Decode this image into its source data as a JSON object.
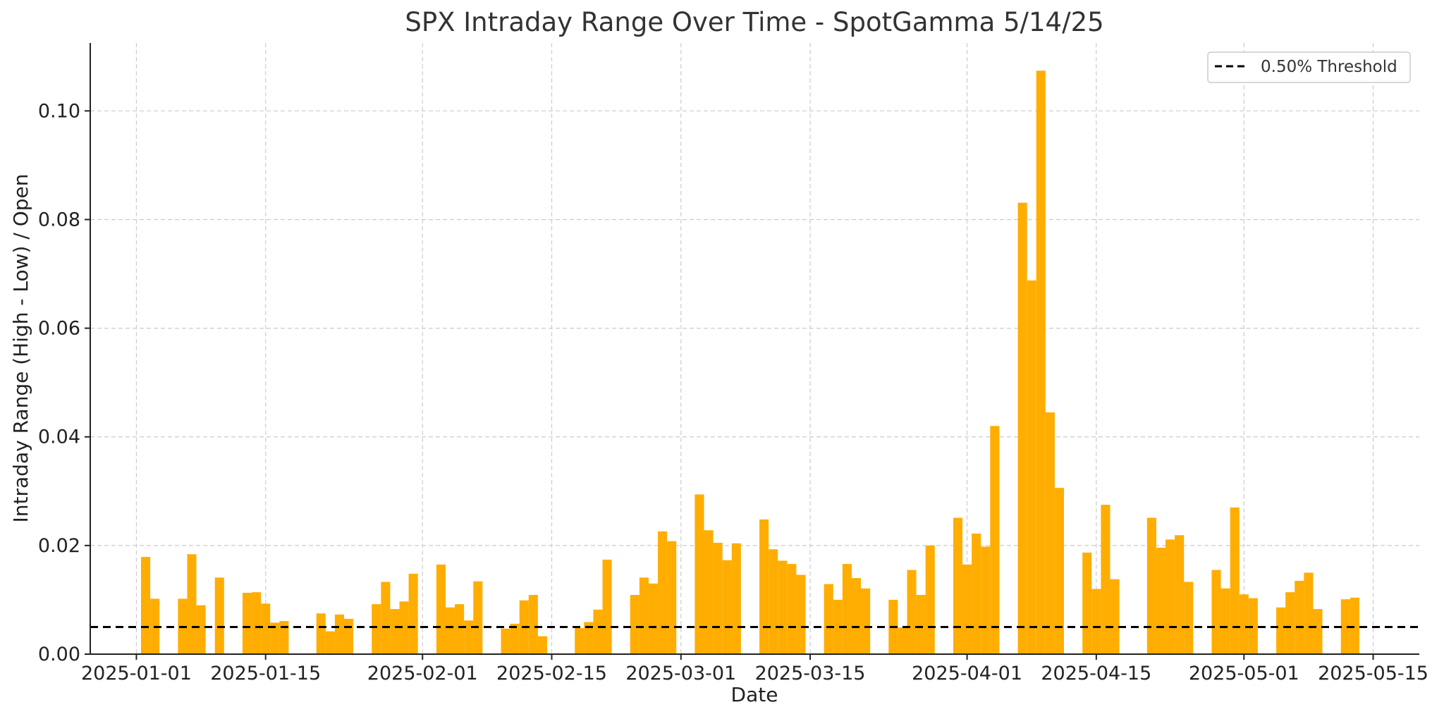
{
  "chart_data": {
    "type": "bar",
    "title": "SPX Intraday Range Over Time - SpotGamma 5/14/25",
    "xlabel": "Date",
    "ylabel": "Intraday Range (High - Low) / Open",
    "xlim": [
      "2024-12-27",
      "2025-05-20"
    ],
    "ylim": [
      0,
      0.1125
    ],
    "x_ticks": [
      "2025-01-01",
      "2025-01-15",
      "2025-02-01",
      "2025-02-15",
      "2025-03-01",
      "2025-03-15",
      "2025-04-01",
      "2025-04-15",
      "2025-05-01",
      "2025-05-15"
    ],
    "y_ticks": [
      0.0,
      0.02,
      0.04,
      0.06,
      0.08,
      0.1
    ],
    "y_tick_labels": [
      "0.00",
      "0.02",
      "0.04",
      "0.06",
      "0.08",
      "0.10"
    ],
    "grid": true,
    "bar_color": "#ffad00",
    "threshold": {
      "value": 0.005,
      "label": "0.50% Threshold",
      "color": "#000000",
      "style": "dashed"
    },
    "legend": {
      "position": "top-right",
      "entries": [
        "0.50% Threshold"
      ]
    },
    "series": [
      {
        "x": [
          "2025-01-02",
          "2025-01-03",
          "2025-01-06",
          "2025-01-07",
          "2025-01-08",
          "2025-01-10",
          "2025-01-13",
          "2025-01-14",
          "2025-01-15",
          "2025-01-16",
          "2025-01-17",
          "2025-01-21",
          "2025-01-22",
          "2025-01-23",
          "2025-01-24",
          "2025-01-27",
          "2025-01-28",
          "2025-01-29",
          "2025-01-30",
          "2025-01-31",
          "2025-02-03",
          "2025-02-04",
          "2025-02-05",
          "2025-02-06",
          "2025-02-07",
          "2025-02-10",
          "2025-02-11",
          "2025-02-12",
          "2025-02-13",
          "2025-02-14",
          "2025-02-18",
          "2025-02-19",
          "2025-02-20",
          "2025-02-21",
          "2025-02-24",
          "2025-02-25",
          "2025-02-26",
          "2025-02-27",
          "2025-02-28",
          "2025-03-03",
          "2025-03-04",
          "2025-03-05",
          "2025-03-06",
          "2025-03-07",
          "2025-03-10",
          "2025-03-11",
          "2025-03-12",
          "2025-03-13",
          "2025-03-14",
          "2025-03-17",
          "2025-03-18",
          "2025-03-19",
          "2025-03-20",
          "2025-03-21",
          "2025-03-24",
          "2025-03-25",
          "2025-03-26",
          "2025-03-27",
          "2025-03-28",
          "2025-03-31",
          "2025-04-01",
          "2025-04-02",
          "2025-04-03",
          "2025-04-04",
          "2025-04-07",
          "2025-04-08",
          "2025-04-09",
          "2025-04-10",
          "2025-04-11",
          "2025-04-14",
          "2025-04-15",
          "2025-04-16",
          "2025-04-17",
          "2025-04-21",
          "2025-04-22",
          "2025-04-23",
          "2025-04-24",
          "2025-04-25",
          "2025-04-28",
          "2025-04-29",
          "2025-04-30",
          "2025-05-01",
          "2025-05-02",
          "2025-05-05",
          "2025-05-06",
          "2025-05-07",
          "2025-05-08",
          "2025-05-09",
          "2025-05-12",
          "2025-05-13"
        ],
        "values": [
          0.0179,
          0.0102,
          0.0102,
          0.0184,
          0.009,
          0.0141,
          0.0113,
          0.0114,
          0.0093,
          0.0058,
          0.0061,
          0.0075,
          0.0042,
          0.0073,
          0.0065,
          0.0092,
          0.0133,
          0.0083,
          0.0097,
          0.0148,
          0.0165,
          0.0086,
          0.0092,
          0.0062,
          0.0134,
          0.0047,
          0.0056,
          0.0099,
          0.0109,
          0.0033,
          0.0048,
          0.0059,
          0.0082,
          0.0174,
          0.0109,
          0.0141,
          0.013,
          0.0226,
          0.0208,
          0.0294,
          0.0228,
          0.0205,
          0.0173,
          0.0204,
          0.0248,
          0.0193,
          0.0172,
          0.0166,
          0.0146,
          0.0129,
          0.01,
          0.0166,
          0.014,
          0.0121,
          0.01,
          0.0049,
          0.0155,
          0.0109,
          0.02,
          0.0251,
          0.0165,
          0.0222,
          0.0198,
          0.042,
          0.0831,
          0.0688,
          0.1074,
          0.0445,
          0.0306,
          0.0187,
          0.012,
          0.0275,
          0.0138,
          0.0251,
          0.0196,
          0.0211,
          0.0219,
          0.0133,
          0.0155,
          0.0121,
          0.027,
          0.011,
          0.0103,
          0.0086,
          0.0114,
          0.0135,
          0.015,
          0.0083,
          0.0101,
          0.0104
        ]
      }
    ]
  }
}
